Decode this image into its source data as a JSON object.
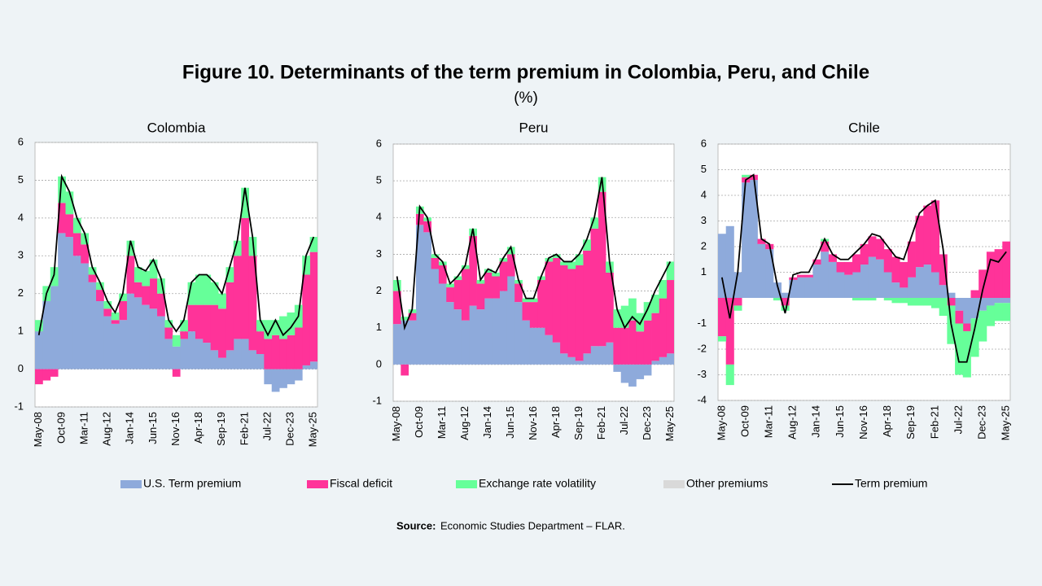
{
  "title": "Figure 10. Determinants of the term premium in Colombia, Peru, and Chile",
  "subtitle": "(%)",
  "source_label": "Source:",
  "source": "Economic Studies Department – FLAR.",
  "chart_data": [
    {
      "type": "stacked_bar",
      "title": "Colombia",
      "categories": [
        "May-08",
        null,
        null,
        "Oct-09",
        null,
        null,
        "Mar-11",
        null,
        null,
        "Aug-12",
        null,
        null,
        "Jan-14",
        null,
        null,
        "Jun-15",
        null,
        null,
        "Nov-16",
        null,
        null,
        "Apr-18",
        null,
        null,
        "Sep-19",
        null,
        null,
        "Feb-21",
        null,
        null,
        "Jul-22",
        null,
        null,
        "Dec-23",
        null,
        null,
        "May-25"
      ],
      "ylim": [
        -1,
        6
      ],
      "yticks": [
        -1,
        0,
        1,
        2,
        3,
        4,
        5,
        6
      ],
      "grid": true,
      "series": [
        {
          "name": "U.S. Term premium",
          "color": "#8eaadb",
          "values": [
            1.0,
            1.8,
            2.2,
            3.6,
            3.5,
            3.0,
            2.8,
            2.3,
            1.8,
            1.4,
            1.2,
            1.3,
            2.0,
            1.9,
            1.7,
            1.6,
            1.4,
            0.8,
            0.6,
            0.8,
            1.0,
            0.8,
            0.7,
            0.5,
            0.3,
            0.5,
            0.8,
            0.8,
            0.5,
            0.4,
            -0.4,
            -0.6,
            -0.5,
            -0.4,
            -0.3,
            0.1,
            0.2
          ]
        },
        {
          "name": "Fiscal deficit",
          "color": "#ff3399",
          "values": [
            -0.4,
            -0.3,
            -0.2,
            0.8,
            0.6,
            0.6,
            0.5,
            0.2,
            0.3,
            0.2,
            0.1,
            0.5,
            1.0,
            0.4,
            0.5,
            0.8,
            0.6,
            0.3,
            -0.2,
            0.2,
            0.7,
            0.9,
            1.0,
            1.2,
            1.3,
            1.8,
            2.2,
            3.2,
            2.5,
            0.6,
            0.8,
            0.9,
            0.8,
            0.9,
            1.1,
            2.4,
            2.9
          ]
        },
        {
          "name": "Exchange rate volatility",
          "color": "#66ff99",
          "values": [
            0.3,
            0.4,
            0.5,
            0.7,
            0.6,
            0.4,
            0.3,
            0.2,
            0.2,
            0.2,
            0.2,
            0.2,
            0.4,
            0.4,
            0.4,
            0.5,
            0.4,
            0.2,
            0.3,
            0.3,
            0.6,
            0.8,
            0.8,
            0.6,
            0.4,
            0.4,
            0.4,
            0.8,
            0.5,
            0.3,
            0.5,
            0.4,
            0.6,
            0.6,
            0.6,
            0.5,
            0.4
          ]
        },
        {
          "name": "Other premiums",
          "color": "#d9d9d9",
          "values": [
            0,
            0,
            0,
            0,
            0,
            0,
            0,
            0,
            0,
            0,
            0,
            0,
            0,
            0,
            0,
            0,
            0,
            0,
            0,
            0,
            0,
            0,
            0,
            0,
            0,
            0,
            0,
            0,
            0,
            0,
            0,
            0,
            0,
            0,
            0,
            0,
            0
          ]
        },
        {
          "name": "Term premium",
          "type": "line",
          "color": "#000000",
          "values": [
            0.9,
            2.0,
            2.5,
            5.1,
            4.7,
            4.0,
            3.6,
            2.7,
            2.3,
            1.8,
            1.5,
            2.0,
            3.4,
            2.7,
            2.6,
            2.9,
            2.4,
            1.3,
            1.0,
            1.3,
            2.3,
            2.5,
            2.5,
            2.3,
            2.0,
            2.7,
            3.4,
            4.8,
            3.5,
            1.3,
            0.9,
            1.3,
            0.9,
            1.1,
            1.4,
            3.0,
            3.5
          ]
        }
      ]
    },
    {
      "type": "stacked_bar",
      "title": "Peru",
      "categories": [
        "May-08",
        null,
        null,
        "Oct-09",
        null,
        null,
        "Mar-11",
        null,
        null,
        "Aug-12",
        null,
        null,
        "Jan-14",
        null,
        null,
        "Jun-15",
        null,
        null,
        "Nov-16",
        null,
        null,
        "Apr-18",
        null,
        null,
        "Sep-19",
        null,
        null,
        "Feb-21",
        null,
        null,
        "Jul-22",
        null,
        null,
        "Dec-23",
        null,
        null,
        "May-25"
      ],
      "ylim": [
        -1,
        6
      ],
      "yticks": [
        -1,
        0,
        1,
        2,
        3,
        4,
        5,
        6
      ],
      "grid": true,
      "series": [
        {
          "name": "U.S. Term premium",
          "color": "#8eaadb",
          "values": [
            1.1,
            1.2,
            1.2,
            3.8,
            3.6,
            2.6,
            2.2,
            1.7,
            1.5,
            1.2,
            1.6,
            1.5,
            1.8,
            1.8,
            2.0,
            2.4,
            1.7,
            1.2,
            1.0,
            1.0,
            0.8,
            0.6,
            0.3,
            0.2,
            0.1,
            0.3,
            0.5,
            0.5,
            0.6,
            -0.2,
            -0.5,
            -0.6,
            -0.4,
            -0.3,
            0.1,
            0.2,
            0.3
          ]
        },
        {
          "name": "Fiscal deficit",
          "color": "#ff3399",
          "values": [
            0.9,
            -0.3,
            0.2,
            0.3,
            0.3,
            0.3,
            0.5,
            0.4,
            0.8,
            1.4,
            1.9,
            0.7,
            0.7,
            0.6,
            0.8,
            0.6,
            0.5,
            0.5,
            0.7,
            1.3,
            2.0,
            2.3,
            2.4,
            2.4,
            2.6,
            2.8,
            3.2,
            4.2,
            1.9,
            1.0,
            1.0,
            1.2,
            0.9,
            1.2,
            1.3,
            1.6,
            2.0
          ]
        },
        {
          "name": "Exchange rate volatility",
          "color": "#66ff99",
          "values": [
            0.3,
            0.1,
            0.1,
            0.2,
            0.1,
            0.1,
            0.1,
            0.1,
            0.1,
            0.1,
            0.2,
            0.1,
            0.1,
            0.1,
            0.1,
            0.2,
            0.1,
            0.1,
            0.1,
            0.1,
            0.1,
            0.1,
            0.1,
            0.2,
            0.3,
            0.3,
            0.3,
            0.4,
            0.3,
            0.5,
            0.6,
            0.6,
            0.5,
            0.5,
            0.5,
            0.5,
            0.5
          ]
        },
        {
          "name": "Other premiums",
          "color": "#d9d9d9",
          "values": [
            0,
            0,
            0,
            0,
            0,
            0,
            0,
            0,
            0,
            0,
            0,
            0,
            0,
            0,
            0,
            0,
            0,
            0,
            0,
            0,
            0,
            0,
            0,
            0,
            0,
            0,
            0,
            0,
            0,
            0,
            0,
            0,
            0,
            0,
            0,
            0,
            0
          ]
        },
        {
          "name": "Term premium",
          "type": "line",
          "color": "#000000",
          "values": [
            2.4,
            1.0,
            1.5,
            4.3,
            4.0,
            3.0,
            2.8,
            2.2,
            2.4,
            2.7,
            3.7,
            2.3,
            2.6,
            2.5,
            2.9,
            3.2,
            2.3,
            1.8,
            1.8,
            2.4,
            2.9,
            3.0,
            2.8,
            2.8,
            3.0,
            3.4,
            4.0,
            5.1,
            2.8,
            1.5,
            1.0,
            1.3,
            1.1,
            1.5,
            2.0,
            2.4,
            2.8
          ]
        }
      ]
    },
    {
      "type": "stacked_bar",
      "title": "Chile",
      "categories": [
        "May-08",
        null,
        null,
        "Oct-09",
        null,
        null,
        "Mar-11",
        null,
        null,
        "Aug-12",
        null,
        null,
        "Jan-14",
        null,
        null,
        "Jun-15",
        null,
        null,
        "Nov-16",
        null,
        null,
        "Apr-18",
        null,
        null,
        "Sep-19",
        null,
        null,
        "Feb-21",
        null,
        null,
        "Jul-22",
        null,
        null,
        "Dec-23",
        null,
        null,
        "May-25"
      ],
      "ylim": [
        -4,
        6
      ],
      "yticks": [
        -4,
        -3,
        -2,
        -1,
        1,
        2,
        3,
        4,
        5,
        6
      ],
      "grid": true,
      "series": [
        {
          "name": "U.S. Term premium",
          "color": "#8eaadb",
          "values": [
            2.5,
            2.8,
            1.0,
            4.5,
            4.6,
            2.1,
            1.9,
            0.6,
            0.2,
            0.7,
            0.8,
            0.8,
            1.3,
            1.8,
            1.4,
            1.0,
            0.9,
            1.0,
            1.3,
            1.6,
            1.5,
            1.0,
            0.6,
            0.4,
            0.8,
            1.2,
            1.3,
            1.0,
            0.5,
            0.2,
            -0.5,
            -1.0,
            -0.8,
            -0.5,
            -0.3,
            -0.2,
            -0.2
          ]
        },
        {
          "name": "Fiscal deficit",
          "color": "#ff3399",
          "values": [
            -1.5,
            -2.6,
            -0.3,
            0.2,
            0.2,
            0.2,
            0.2,
            0.0,
            -0.3,
            0.1,
            0.1,
            0.1,
            0.2,
            0.4,
            0.3,
            0.4,
            0.5,
            0.7,
            0.8,
            0.8,
            0.8,
            0.9,
            1.0,
            1.0,
            1.4,
            2.0,
            2.3,
            2.8,
            1.2,
            -0.3,
            -0.5,
            -0.3,
            0.3,
            1.1,
            1.8,
            1.9,
            2.2
          ]
        },
        {
          "name": "Exchange rate volatility",
          "color": "#66ff99",
          "values": [
            -0.2,
            -0.8,
            -0.2,
            0.1,
            0.0,
            0.0,
            0.0,
            -0.1,
            -0.2,
            0.0,
            0.0,
            0.0,
            0.0,
            0.1,
            0.0,
            0.0,
            0.0,
            -0.1,
            -0.1,
            -0.1,
            0.0,
            -0.1,
            -0.2,
            -0.2,
            -0.3,
            -0.3,
            -0.3,
            -0.4,
            -0.7,
            -1.5,
            -2.0,
            -1.8,
            -1.5,
            -1.2,
            -0.8,
            -0.7,
            -0.7
          ]
        },
        {
          "name": "Other premiums",
          "color": "#d9d9d9",
          "values": [
            0,
            0,
            0,
            0,
            0,
            0,
            0,
            0,
            0,
            0,
            0,
            0,
            0,
            0,
            0,
            0,
            0,
            0,
            0,
            0,
            0,
            0,
            0,
            0,
            0,
            0,
            0,
            0,
            0,
            0,
            0,
            0,
            0,
            0,
            0,
            0,
            0
          ]
        },
        {
          "name": "Term premium",
          "type": "line",
          "color": "#000000",
          "values": [
            0.8,
            -0.8,
            1.0,
            4.6,
            4.8,
            2.3,
            2.1,
            0.5,
            -0.6,
            0.9,
            1.0,
            1.0,
            1.6,
            2.3,
            1.7,
            1.5,
            1.5,
            1.8,
            2.1,
            2.5,
            2.4,
            2.0,
            1.6,
            1.5,
            2.4,
            3.3,
            3.6,
            3.8,
            1.9,
            -1.0,
            -2.5,
            -2.5,
            -1.2,
            0.3,
            1.5,
            1.4,
            1.8
          ]
        }
      ]
    }
  ]
}
